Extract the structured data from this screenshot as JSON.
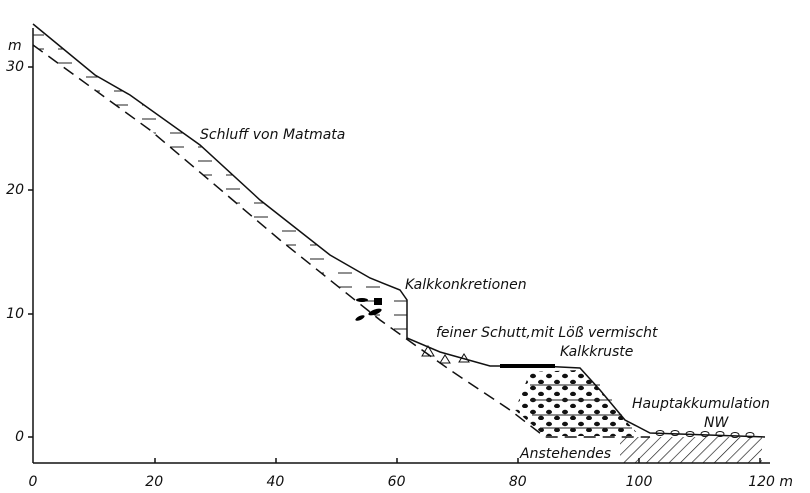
{
  "axes": {
    "y_unit": "m",
    "y_ticks": [
      "30",
      "20",
      "10",
      "0"
    ],
    "x_ticks": [
      "0",
      "20",
      "40",
      "60",
      "80",
      "100",
      "120 m"
    ]
  },
  "labels": {
    "silt": "Schluff von Matmata",
    "concretions": "Kalkkonkretionen",
    "debris": "feiner Schutt,mit Löß vermischt",
    "crust": "Kalkkruste",
    "main": "Hauptakkumulation",
    "nw": "NW",
    "bedrock": "Anstehendes"
  }
}
